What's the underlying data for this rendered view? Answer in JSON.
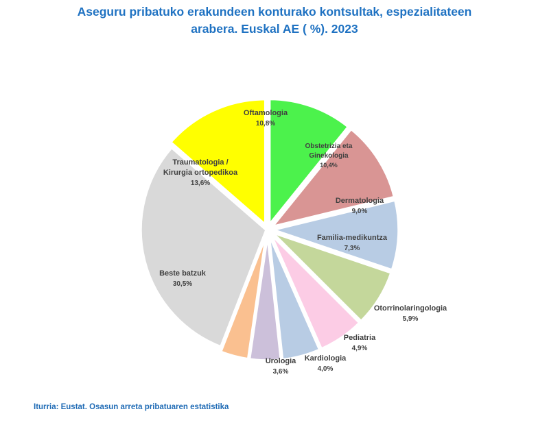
{
  "header": {
    "title_line1": "Aseguru pribatuko erakundeen konturako kontsultak, espezialitateen",
    "title_line2": "arabera. Euskal AE ( %). 2023"
  },
  "footer": {
    "source": "Iturria: Eustat. Osasun arreta pribatuaren estatistika"
  },
  "chart_data": {
    "type": "pie",
    "title": "Aseguru pribatuko erakundeen konturako kontsultak, espezialitateen arabera. Euskal AE ( %). 2023",
    "unit": "%",
    "start": "clockwise from top, Oftamologia first",
    "slices": [
      {
        "name": "Oftamologia",
        "label_lines": [
          "Oftamologia"
        ],
        "value_label": "10,8%",
        "value": 10.8,
        "color": "#4cf24c"
      },
      {
        "name": "Obstetrizia eta Ginekologia",
        "label_lines": [
          "Obstetrizia eta",
          "Ginekologia"
        ],
        "value_label": "10,4%",
        "value": 10.4,
        "color": "#d99594"
      },
      {
        "name": "Dermatologia",
        "label_lines": [
          "Dermatologia"
        ],
        "value_label": "9,0%",
        "value": 9.0,
        "color": "#b8cce4"
      },
      {
        "name": "Familia-medikuntza",
        "label_lines": [
          "Familia-medikuntza"
        ],
        "value_label": "7,3%",
        "value": 7.3,
        "color": "#c4d79b"
      },
      {
        "name": "Otorrinolaringologia",
        "label_lines": [
          "Otorrinolaringologia"
        ],
        "value_label": "5,9%",
        "value": 5.9,
        "color": "#fccce5"
      },
      {
        "name": "Pediatria",
        "label_lines": [
          "Pediatria"
        ],
        "value_label": "4,9%",
        "value": 4.9,
        "color": "#b8cce4"
      },
      {
        "name": "Kardiologia",
        "label_lines": [
          "Kardiologia"
        ],
        "value_label": "4,0%",
        "value": 4.0,
        "color": "#ccc0da"
      },
      {
        "name": "Urologia",
        "label_lines": [
          "Urologia"
        ],
        "value_label": "3,6%",
        "value": 3.6,
        "color": "#fac090"
      },
      {
        "name": "Beste batzuk",
        "label_lines": [
          "Beste batzuk"
        ],
        "value_label": "30,5%",
        "value": 30.5,
        "color": "#d9d9d9"
      },
      {
        "name": "Traumatologia / Kirurgia ortopedikoa",
        "label_lines": [
          "Traumatologia /",
          "Kirurgia ortopedikoa"
        ],
        "value_label": "13,6%",
        "value": 13.6,
        "color": "#ffff00"
      }
    ]
  }
}
